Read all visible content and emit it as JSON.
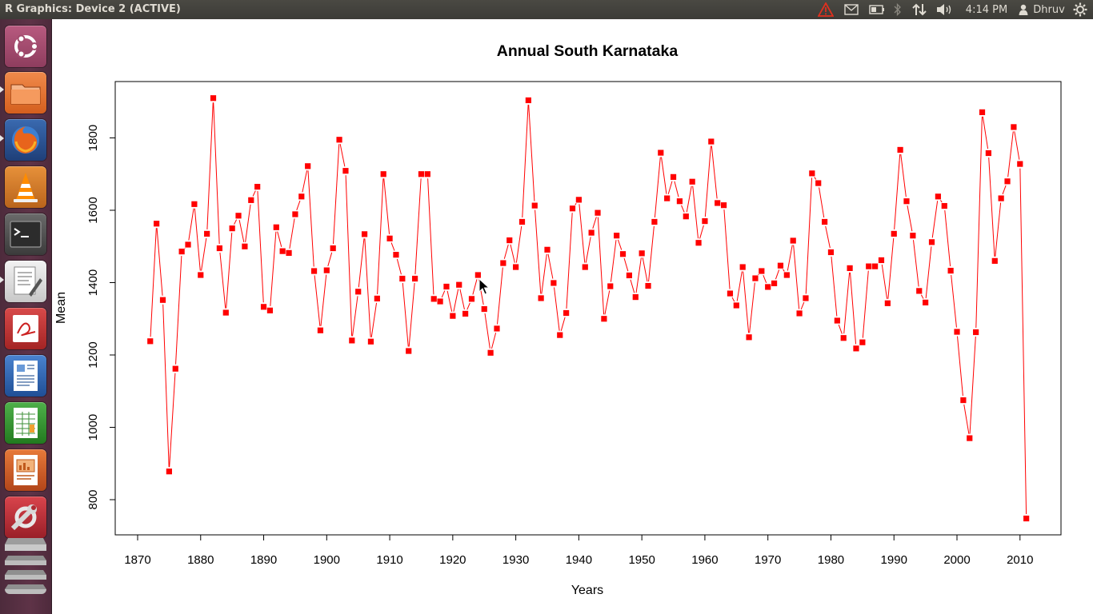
{
  "window": {
    "title": "R Graphics: Device 2 (ACTIVE)"
  },
  "panel": {
    "clock": "4:14 PM",
    "user": "Dhruv",
    "indicators": [
      "warning-icon",
      "mail-icon",
      "battery-icon",
      "bluetooth-icon",
      "network-icon",
      "volume-icon",
      "user-icon",
      "session-gear-icon"
    ]
  },
  "launcher": {
    "items": [
      {
        "name": "dash-home",
        "icon": "ubuntu-logo-icon"
      },
      {
        "name": "files",
        "icon": "folder-icon"
      },
      {
        "name": "firefox",
        "icon": "firefox-icon"
      },
      {
        "name": "vlc",
        "icon": "vlc-cone-icon"
      },
      {
        "name": "terminal",
        "icon": "terminal-icon"
      },
      {
        "name": "text-editor",
        "icon": "text-editor-icon"
      },
      {
        "name": "document-viewer",
        "icon": "document-viewer-icon"
      },
      {
        "name": "libreoffice-writer",
        "icon": "writer-icon"
      },
      {
        "name": "libreoffice-calc",
        "icon": "calc-icon"
      },
      {
        "name": "libreoffice-impress",
        "icon": "impress-icon"
      },
      {
        "name": "system-settings",
        "icon": "settings-wrench-icon"
      },
      {
        "name": "workspace-switcher",
        "icon": "workspace-icon"
      }
    ]
  },
  "chart_data": {
    "type": "line",
    "title": "Annual South Karnataka",
    "xlabel": "Years",
    "ylabel": "Mean",
    "xlim": [
      1870,
      2010
    ],
    "xticks": [
      1870,
      1880,
      1890,
      1900,
      1910,
      1920,
      1930,
      1940,
      1950,
      1960,
      1970,
      1980,
      1990,
      2000,
      2010
    ],
    "yticks": [
      800,
      1000,
      1200,
      1400,
      1600,
      1800
    ],
    "marker": "square",
    "color": "#ff0000",
    "grid": false,
    "x": [
      1872,
      1873,
      1874,
      1875,
      1876,
      1877,
      1878,
      1879,
      1880,
      1881,
      1882,
      1883,
      1884,
      1885,
      1886,
      1887,
      1888,
      1889,
      1890,
      1891,
      1892,
      1893,
      1894,
      1895,
      1896,
      1897,
      1898,
      1899,
      1900,
      1901,
      1902,
      1903,
      1904,
      1905,
      1906,
      1907,
      1908,
      1909,
      1910,
      1911,
      1912,
      1913,
      1914,
      1915,
      1916,
      1917,
      1918,
      1919,
      1920,
      1921,
      1922,
      1923,
      1924,
      1925,
      1926,
      1927,
      1928,
      1929,
      1930,
      1931,
      1932,
      1933,
      1934,
      1935,
      1936,
      1937,
      1938,
      1939,
      1940,
      1941,
      1942,
      1943,
      1944,
      1945,
      1946,
      1947,
      1948,
      1949,
      1950,
      1951,
      1952,
      1953,
      1954,
      1955,
      1956,
      1957,
      1958,
      1959,
      1960,
      1961,
      1962,
      1963,
      1964,
      1965,
      1966,
      1967,
      1968,
      1969,
      1970,
      1971,
      1972,
      1973,
      1974,
      1975,
      1976,
      1977,
      1978,
      1979,
      1980,
      1981,
      1982,
      1983,
      1984,
      1985,
      1986,
      1987,
      1988,
      1989,
      1990,
      1991,
      1992,
      1993,
      1994,
      1995,
      1996,
      1997,
      1998,
      1999,
      2000,
      2001,
      2002,
      2003,
      2004,
      2005,
      2006,
      2007,
      2008,
      2009,
      2010,
      2011
    ],
    "y": [
      1238,
      1563,
      1352,
      878,
      1162,
      1486,
      1505,
      1617,
      1421,
      1535,
      1910,
      1495,
      1317,
      1550,
      1585,
      1500,
      1628,
      1665,
      1333,
      1323,
      1553,
      1487,
      1482,
      1589,
      1638,
      1722,
      1432,
      1268,
      1434,
      1495,
      1795,
      1709,
      1240,
      1375,
      1534,
      1237,
      1356,
      1700,
      1522,
      1477,
      1411,
      1211,
      1411,
      1700,
      1700,
      1355,
      1348,
      1389,
      1308,
      1394,
      1314,
      1355,
      1421,
      1327,
      1206,
      1273,
      1454,
      1517,
      1443,
      1568,
      1904,
      1613,
      1357,
      1491,
      1399,
      1255,
      1316,
      1605,
      1629,
      1443,
      1538,
      1593,
      1300,
      1390,
      1530,
      1479,
      1420,
      1360,
      1481,
      1391,
      1568,
      1759,
      1633,
      1692,
      1625,
      1583,
      1679,
      1510,
      1570,
      1790,
      1620,
      1614,
      1370,
      1337,
      1443,
      1249,
      1412,
      1432,
      1388,
      1398,
      1447,
      1421,
      1516,
      1315,
      1357,
      1702,
      1675,
      1568,
      1484,
      1295,
      1247,
      1440,
      1218,
      1235,
      1445,
      1445,
      1462,
      1343,
      1535,
      1767,
      1625,
      1530,
      1377,
      1345,
      1512,
      1638,
      1612,
      1433,
      1264,
      1075,
      970,
      1263,
      1871,
      1758,
      1460,
      1633,
      1680,
      1830,
      1728,
      748
    ]
  }
}
